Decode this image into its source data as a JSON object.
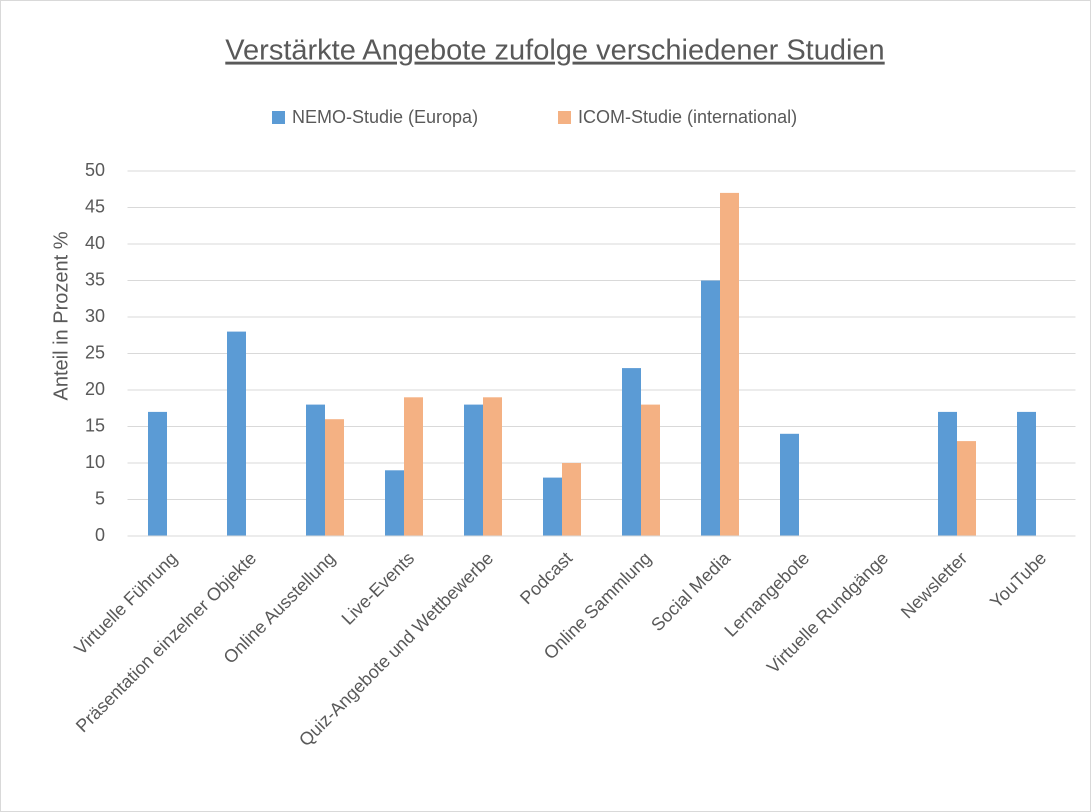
{
  "chart_data": {
    "type": "bar",
    "title": "Verstärkte Angebote zufolge verschiedener Studien",
    "y_label": "Anteil in Prozent %",
    "categories": [
      "Virtuelle Führung",
      "Präsentation einzelner Objekte",
      "Online Ausstellung",
      "Live-Events",
      "Quiz-Angebote und Wettbewerbe",
      "Podcast",
      "Online Sammlung",
      "Social Media",
      "Lernangebote",
      "Virtuelle Rundgänge",
      "Newsletter",
      "YouTube"
    ],
    "series": [
      {
        "name": "NEMO-Studie (Europa)",
        "color": "#5b9bd5",
        "values": [
          17,
          28,
          18,
          9,
          18,
          8,
          23,
          35,
          14,
          null,
          17,
          17
        ]
      },
      {
        "name": "ICOM-Studie (international)",
        "color": "#f4b183",
        "values": [
          null,
          null,
          16,
          19,
          19,
          10,
          18,
          47,
          null,
          null,
          13,
          null
        ]
      }
    ],
    "ylim": [
      0,
      50
    ],
    "yticks": [
      0,
      5,
      10,
      15,
      20,
      25,
      30,
      35,
      40,
      45,
      50
    ],
    "grid": true,
    "legend": "top"
  }
}
